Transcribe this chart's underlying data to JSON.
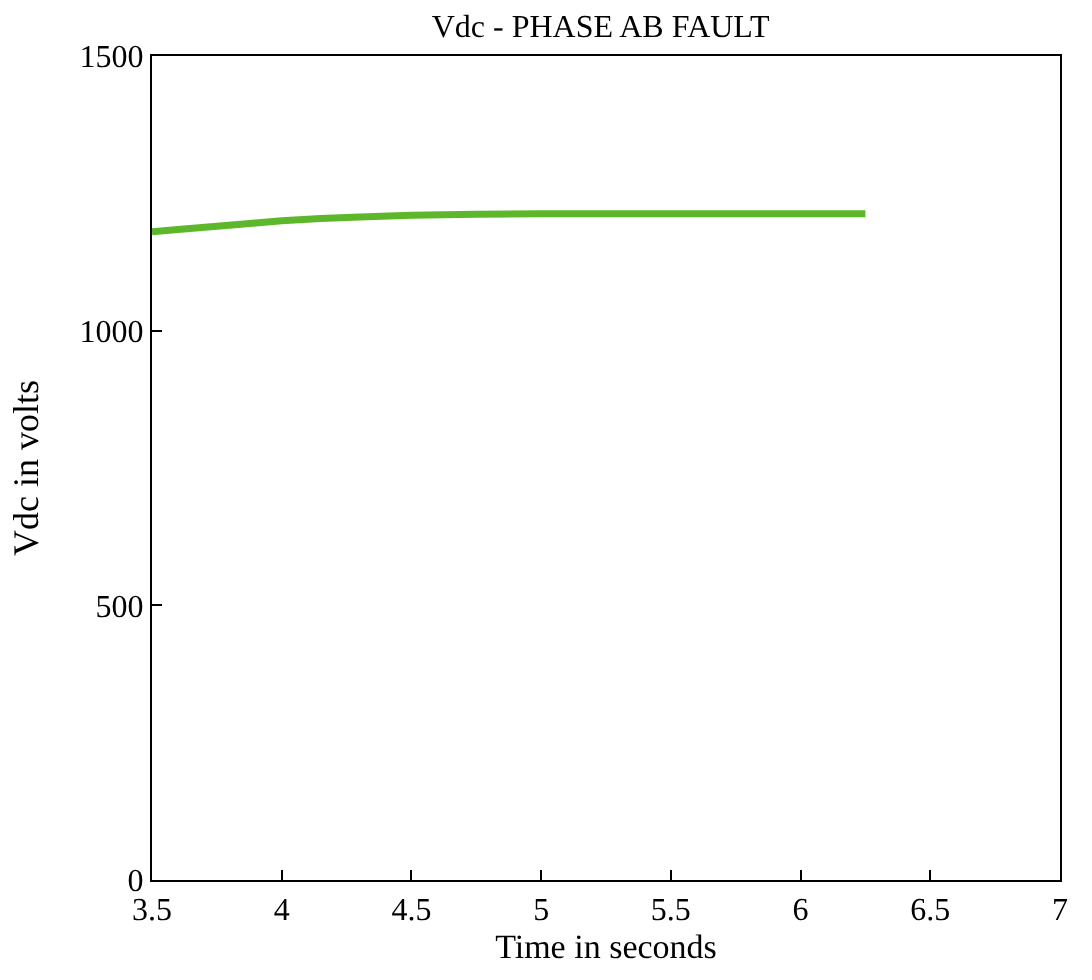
{
  "chart_data": {
    "type": "line",
    "title": "Vdc - PHASE AB FAULT",
    "xlabel": "Time in seconds",
    "ylabel": "Vdc in volts",
    "x": [
      3.5,
      3.6,
      3.75,
      3.9,
      4.0,
      4.15,
      4.3,
      4.5,
      4.75,
      5.0,
      5.5,
      6.0,
      6.25
    ],
    "series": [
      {
        "color": "#5cb82a",
        "values": [
          1180,
          1184,
          1190,
          1196,
          1200,
          1204,
          1207,
          1210,
          1212,
          1213,
          1213,
          1213,
          1213
        ]
      }
    ],
    "xlim": [
      3.5,
      7
    ],
    "xticks": [
      3.5,
      4,
      4.5,
      5,
      5.5,
      6,
      6.5,
      7
    ],
    "ylim": [
      0,
      1500
    ],
    "yticks": [
      0,
      500,
      1000,
      1500
    ],
    "marker": "none",
    "line_style": "solid"
  }
}
